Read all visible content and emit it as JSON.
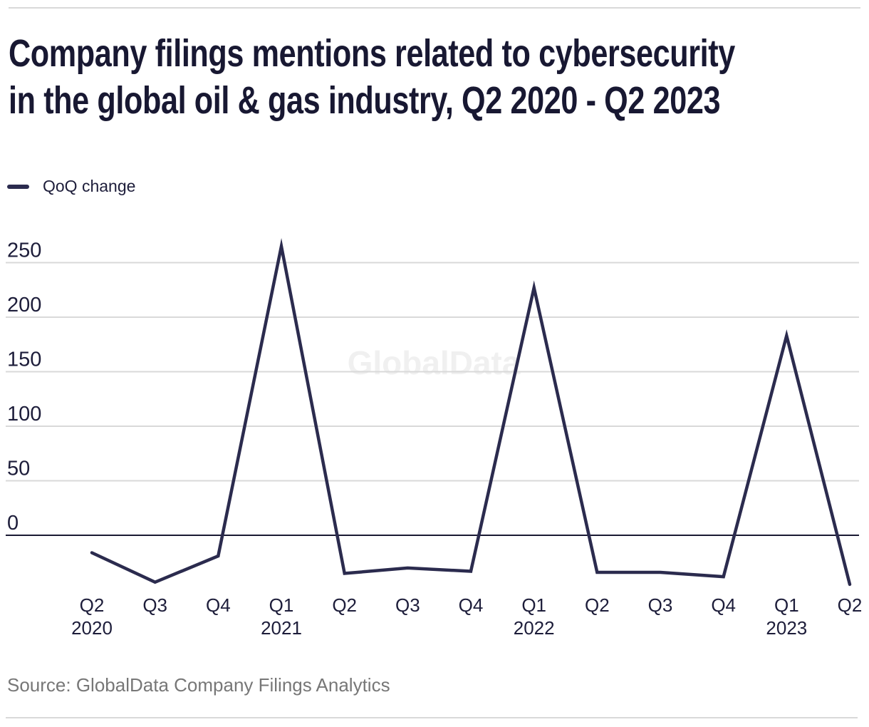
{
  "page": {
    "title_line1": "Company filings mentions related to cybersecurity",
    "title_line2": "in the global oil & gas industry, Q2 2020 - Q2 2023",
    "source": "Source: GlobalData Company Filings Analytics"
  },
  "legend": {
    "label": "QoQ change"
  },
  "colors": {
    "series_line": "#2b2b4e",
    "grid_line": "#d9d9d9",
    "zero_line": "#1a1a33",
    "title_text": "#181832",
    "axis_text": "#1d1d3a",
    "source_text": "#777777",
    "watermark_text": "#f0f0f0",
    "rule": "#d9d9d9"
  },
  "chart_data": {
    "type": "line",
    "title": "Company filings mentions related to cybersecurity in the global oil & gas industry, Q2 2020 - Q2 2023",
    "watermark": "GlobalData",
    "categories": [
      "Q2 2020",
      "Q3 2020",
      "Q4 2020",
      "Q1 2021",
      "Q2 2021",
      "Q3 2021",
      "Q4 2021",
      "Q1 2022",
      "Q2 2022",
      "Q3 2022",
      "Q4 2022",
      "Q1 2023",
      "Q2 2023"
    ],
    "x_tick_labels": [
      {
        "quarter": "Q2",
        "year": "2020"
      },
      {
        "quarter": "Q3",
        "year": ""
      },
      {
        "quarter": "Q4",
        "year": ""
      },
      {
        "quarter": "Q1",
        "year": "2021"
      },
      {
        "quarter": "Q2",
        "year": ""
      },
      {
        "quarter": "Q3",
        "year": ""
      },
      {
        "quarter": "Q4",
        "year": ""
      },
      {
        "quarter": "Q1",
        "year": "2022"
      },
      {
        "quarter": "Q2",
        "year": ""
      },
      {
        "quarter": "Q3",
        "year": ""
      },
      {
        "quarter": "Q4",
        "year": ""
      },
      {
        "quarter": "Q1",
        "year": "2023"
      },
      {
        "quarter": "Q2",
        "year": ""
      }
    ],
    "series": [
      {
        "name": "QoQ change",
        "values": [
          -16,
          -43,
          -19,
          265,
          -35,
          -30,
          -33,
          227,
          -34,
          -34,
          -38,
          183,
          -45
        ]
      }
    ],
    "y_ticks": [
      250,
      200,
      150,
      100,
      50,
      0
    ],
    "ylim": [
      -60,
      275
    ],
    "grid": "horizontal",
    "legend_position": "top-left",
    "xlabel": "",
    "ylabel": ""
  }
}
